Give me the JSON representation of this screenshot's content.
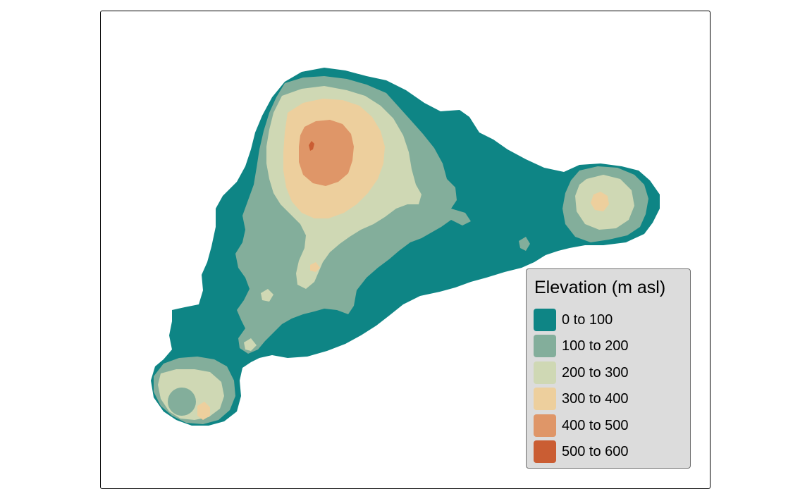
{
  "legend": {
    "title": "Elevation (m asl)",
    "classes": [
      {
        "label": "0 to 100",
        "color": "#0e8585"
      },
      {
        "label": "100 to 200",
        "color": "#83ae9b"
      },
      {
        "label": "200 to 300",
        "color": "#cfd8b4"
      },
      {
        "label": "300 to 400",
        "color": "#edcf9d"
      },
      {
        "label": "400 to 500",
        "color": "#df9668"
      },
      {
        "label": "500 to 600",
        "color": "#ca5d33"
      }
    ]
  }
}
